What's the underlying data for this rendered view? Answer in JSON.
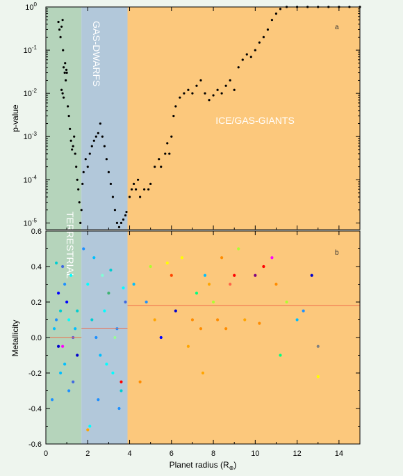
{
  "colors": {
    "background": "#eef5ee",
    "terrestrial": "#b5d4bb",
    "gas_dwarfs": "#b2c8da",
    "giants": "#fcc87c",
    "pvalue_points": "#000000",
    "mean_line": "#ee6b4a"
  },
  "chart_data": [
    {
      "panel_label": "a",
      "type": "scatter",
      "ylabel": "p-value",
      "yscale": "log",
      "xlim": [
        0,
        15
      ],
      "ylim": [
        7e-06,
        1
      ],
      "yticks": [
        "10",
        "10",
        "10",
        "10",
        "10",
        "10"
      ],
      "ytick_exponents": [
        "-5",
        "-4",
        "-3",
        "-2",
        "-1",
        "0"
      ],
      "region_boundaries": [
        1.7,
        3.9
      ],
      "regions": [
        {
          "name": "TERRESTRIAL",
          "x_range": [
            0,
            1.7
          ],
          "label_rotated": true
        },
        {
          "name": "GAS-DWARFS",
          "x_range": [
            1.7,
            3.9
          ],
          "label_rotated": true
        },
        {
          "name": "ICE/GAS-GIANTS",
          "x_range": [
            3.9,
            15
          ],
          "label_rotated": false
        }
      ],
      "series": [
        {
          "points": [
            [
              0.6,
              0.45
            ],
            [
              0.65,
              0.3
            ],
            [
              0.7,
              0.2
            ],
            [
              0.75,
              0.35
            ],
            [
              0.8,
              0.5
            ],
            [
              0.82,
              0.1
            ],
            [
              0.85,
              0.04
            ],
            [
              0.9,
              0.03
            ],
            [
              0.92,
              0.05
            ],
            [
              0.95,
              0.02
            ],
            [
              0.98,
              0.035
            ],
            [
              1.0,
              0.03
            ],
            [
              0.75,
              0.012
            ],
            [
              0.8,
              0.01
            ],
            [
              0.85,
              0.008
            ],
            [
              1.05,
              0.005
            ],
            [
              1.1,
              0.003
            ],
            [
              1.15,
              0.0015
            ],
            [
              1.2,
              0.0008
            ],
            [
              1.25,
              0.0005
            ],
            [
              1.3,
              0.0006
            ],
            [
              1.35,
              0.001
            ],
            [
              1.4,
              0.0004
            ],
            [
              1.45,
              0.0002
            ],
            [
              1.5,
              0.0001
            ],
            [
              1.55,
              6e-05
            ],
            [
              1.6,
              3e-05
            ],
            [
              1.65,
              1e-05
            ],
            [
              1.7,
              2e-05
            ],
            [
              1.75,
              8e-05
            ],
            [
              1.8,
              0.00015
            ],
            [
              1.9,
              0.0003
            ],
            [
              2.0,
              0.0002
            ],
            [
              2.1,
              0.0004
            ],
            [
              2.2,
              0.0006
            ],
            [
              2.3,
              0.0008
            ],
            [
              2.4,
              0.001
            ],
            [
              2.5,
              0.0012
            ],
            [
              2.6,
              0.002
            ],
            [
              2.7,
              0.001
            ],
            [
              2.8,
              0.0006
            ],
            [
              2.9,
              0.0003
            ],
            [
              3.0,
              0.00015
            ],
            [
              3.1,
              8e-05
            ],
            [
              3.2,
              4e-05
            ],
            [
              3.3,
              2e-05
            ],
            [
              3.4,
              1e-05
            ],
            [
              3.5,
              8e-06
            ],
            [
              3.6,
              1e-05
            ],
            [
              3.7,
              1.2e-05
            ],
            [
              3.8,
              1.5e-05
            ],
            [
              3.85,
              1.8e-05
            ],
            [
              4.0,
              4e-05
            ],
            [
              4.1,
              6e-05
            ],
            [
              4.2,
              8e-05
            ],
            [
              4.3,
              6e-05
            ],
            [
              4.4,
              0.0001
            ],
            [
              4.5,
              4e-05
            ],
            [
              4.7,
              6e-05
            ],
            [
              4.9,
              6e-05
            ],
            [
              5.0,
              8e-05
            ],
            [
              5.2,
              0.0002
            ],
            [
              5.4,
              0.0003
            ],
            [
              5.5,
              0.0002
            ],
            [
              5.7,
              0.0004
            ],
            [
              5.8,
              0.0007
            ],
            [
              5.9,
              0.0004
            ],
            [
              6.0,
              0.001
            ],
            [
              6.1,
              0.003
            ],
            [
              6.2,
              0.005
            ],
            [
              6.4,
              0.008
            ],
            [
              6.6,
              0.01
            ],
            [
              6.8,
              0.012
            ],
            [
              7.0,
              0.01
            ],
            [
              7.2,
              0.015
            ],
            [
              7.4,
              0.02
            ],
            [
              7.6,
              0.01
            ],
            [
              7.8,
              0.007
            ],
            [
              8.0,
              0.009
            ],
            [
              8.2,
              0.012
            ],
            [
              8.4,
              0.01
            ],
            [
              8.6,
              0.015
            ],
            [
              8.8,
              0.02
            ],
            [
              9.0,
              0.012
            ],
            [
              9.2,
              0.04
            ],
            [
              9.4,
              0.06
            ],
            [
              9.6,
              0.08
            ],
            [
              9.8,
              0.07
            ],
            [
              10.0,
              0.1
            ],
            [
              10.2,
              0.15
            ],
            [
              10.4,
              0.2
            ],
            [
              10.6,
              0.3
            ],
            [
              10.8,
              0.5
            ],
            [
              11.0,
              0.7
            ],
            [
              11.2,
              0.9
            ],
            [
              11.5,
              1.0
            ],
            [
              12.0,
              1.0
            ],
            [
              12.5,
              1.0
            ],
            [
              13.0,
              1.0
            ],
            [
              13.5,
              1.0
            ],
            [
              14.0,
              1.0
            ],
            [
              14.5,
              1.0
            ],
            [
              15.0,
              1.0
            ]
          ]
        }
      ]
    },
    {
      "panel_label": "b",
      "type": "scatter",
      "ylabel": "Metallicity",
      "xlabel": "Planet radius",
      "xlabel_unit": "(R",
      "xlabel_unit_sub": "⊕",
      "xlabel_unit_close": ")",
      "xlim": [
        0,
        15
      ],
      "ylim": [
        -0.6,
        0.6
      ],
      "xticks": [
        "0",
        "2",
        "4",
        "6",
        "8",
        "10",
        "12",
        "14"
      ],
      "yticks": [
        "-0.6",
        "-0.4",
        "-0.2",
        "0.0",
        "0.2",
        "0.4",
        "0.6"
      ],
      "region_boundaries": [
        1.7,
        3.9
      ],
      "mean_lines": [
        {
          "x_range": [
            0,
            1.7
          ],
          "y": 0.0
        },
        {
          "x_range": [
            1.7,
            3.9
          ],
          "y": 0.05
        },
        {
          "x_range": [
            3.9,
            15
          ],
          "y": 0.18
        }
      ],
      "series": [
        {
          "points": [
            [
              0.4,
              0.05,
              "#00bfff"
            ],
            [
              0.5,
              0.1,
              "#1e90ff"
            ],
            [
              0.6,
              -0.05,
              "#0000cd"
            ],
            [
              0.7,
              0.15,
              "#00ced1"
            ],
            [
              0.8,
              0.4,
              "#4169e1"
            ],
            [
              0.9,
              -0.15,
              "#00bfff"
            ],
            [
              1.0,
              0.2,
              "#0000ff"
            ],
            [
              1.1,
              -0.3,
              "#1e90ff"
            ],
            [
              1.2,
              0.35,
              "#00ffff"
            ],
            [
              1.3,
              0.0,
              "#6a5acd"
            ],
            [
              1.4,
              0.05,
              "#00bfff"
            ],
            [
              1.5,
              -0.1,
              "#0000cd"
            ],
            [
              0.3,
              -0.35,
              "#1e90ff"
            ],
            [
              0.5,
              0.42,
              "#00ced1"
            ],
            [
              0.6,
              0.25,
              "#0000ff"
            ],
            [
              0.7,
              -0.2,
              "#00bfff"
            ],
            [
              0.9,
              0.3,
              "#1e90ff"
            ],
            [
              1.1,
              0.1,
              "#00ffff"
            ],
            [
              1.3,
              -0.25,
              "#4169e1"
            ],
            [
              1.5,
              0.15,
              "#00ced1"
            ],
            [
              0.8,
              -0.05,
              "#ff00ff"
            ],
            [
              1.8,
              0.5,
              "#1e90ff"
            ],
            [
              2.0,
              0.3,
              "#00ffff"
            ],
            [
              2.2,
              0.1,
              "#00ced1"
            ],
            [
              2.4,
              0.0,
              "#1e90ff"
            ],
            [
              2.6,
              -0.1,
              "#00bfff"
            ],
            [
              2.8,
              0.15,
              "#00ffff"
            ],
            [
              3.0,
              0.25,
              "#3cb371"
            ],
            [
              3.2,
              -0.2,
              "#00ffff"
            ],
            [
              3.4,
              0.05,
              "#1e90ff"
            ],
            [
              3.6,
              -0.3,
              "#00ced1"
            ],
            [
              3.8,
              0.2,
              "#4169e1"
            ],
            [
              2.1,
              -0.5,
              "#00ffff"
            ],
            [
              2.3,
              0.45,
              "#00bfff"
            ],
            [
              2.5,
              -0.35,
              "#1e90ff"
            ],
            [
              2.7,
              0.35,
              "#7fffd4"
            ],
            [
              2.9,
              -0.15,
              "#00ffff"
            ],
            [
              3.1,
              0.38,
              "#00ced1"
            ],
            [
              3.3,
              0.0,
              "#98fb98"
            ],
            [
              3.5,
              -0.4,
              "#1e90ff"
            ],
            [
              3.7,
              0.28,
              "#00ffff"
            ],
            [
              2.0,
              -0.52,
              "#ffa500"
            ],
            [
              3.6,
              -0.25,
              "#ff0000"
            ],
            [
              4.2,
              0.3,
              "#00bfff"
            ],
            [
              4.5,
              -0.25,
              "#ff8c00"
            ],
            [
              4.8,
              0.2,
              "#1e90ff"
            ],
            [
              5.0,
              0.4,
              "#adff2f"
            ],
            [
              5.2,
              0.1,
              "#ffa500"
            ],
            [
              5.5,
              0.0,
              "#0000ff"
            ],
            [
              5.8,
              0.42,
              "#ffff00"
            ],
            [
              6.0,
              0.35,
              "#ff4500"
            ],
            [
              6.2,
              0.15,
              "#0000cd"
            ],
            [
              6.5,
              0.45,
              "#ffff00"
            ],
            [
              6.8,
              -0.05,
              "#ffa500"
            ],
            [
              7.0,
              0.1,
              "#ff8c00"
            ],
            [
              7.2,
              0.25,
              "#00ff7f"
            ],
            [
              7.4,
              0.05,
              "#ff8c00"
            ],
            [
              7.6,
              0.35,
              "#00bfff"
            ],
            [
              7.8,
              0.3,
              "#ffa500"
            ],
            [
              8.0,
              0.2,
              "#adff2f"
            ],
            [
              8.2,
              0.1,
              "#ff8c00"
            ],
            [
              8.4,
              0.45,
              "#ff8c00"
            ],
            [
              8.6,
              0.05,
              "#ff8c00"
            ],
            [
              8.8,
              0.3,
              "#ff6347"
            ],
            [
              9.0,
              0.35,
              "#ff0000"
            ],
            [
              9.2,
              0.5,
              "#adff2f"
            ],
            [
              9.5,
              0.1,
              "#ffa500"
            ],
            [
              10.0,
              0.35,
              "#800080"
            ],
            [
              10.2,
              0.08,
              "#ff8c00"
            ],
            [
              10.4,
              0.4,
              "#ff0000"
            ],
            [
              10.8,
              0.45,
              "#ff00ff"
            ],
            [
              11.0,
              0.3,
              "#ff8c00"
            ],
            [
              11.2,
              -0.1,
              "#00ff7f"
            ],
            [
              11.5,
              0.2,
              "#adff2f"
            ],
            [
              12.0,
              0.1,
              "#00bfff"
            ],
            [
              12.3,
              0.15,
              "#1e90ff"
            ],
            [
              12.7,
              0.35,
              "#0000cd"
            ],
            [
              13.0,
              -0.05,
              "#808080"
            ],
            [
              13.0,
              -0.22,
              "#ffff00"
            ],
            [
              7.5,
              -0.2,
              "#ffa500"
            ]
          ]
        }
      ]
    }
  ]
}
